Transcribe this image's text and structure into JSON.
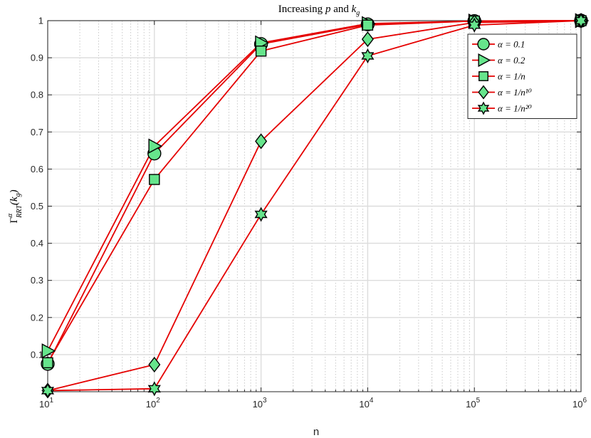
{
  "chart_data": {
    "type": "line",
    "title_prefix": "Increasing ",
    "title_var1": "p",
    "title_mid": " and ",
    "title_var2": "k",
    "title_var2_sub": "g",
    "xlabel": "n",
    "ylabel_main": "Γ",
    "ylabel_sup": "α",
    "ylabel_sub": "RRT",
    "ylabel_arg": "(k",
    "ylabel_arg_sub": "g",
    "ylabel_close": ")",
    "x_scale": "log",
    "xlim": [
      10,
      1000000
    ],
    "ylim": [
      0,
      1
    ],
    "x_tick_base": "10",
    "x_tick_exponents": [
      "1",
      "2",
      "3",
      "4",
      "5",
      "6"
    ],
    "y_ticks": [
      "0.1",
      "0.2",
      "0.3",
      "0.4",
      "0.5",
      "0.6",
      "0.7",
      "0.8",
      "0.9",
      "1"
    ],
    "y_tick_values": [
      0.1,
      0.2,
      0.3,
      0.4,
      0.5,
      0.6,
      0.7,
      0.8,
      0.9,
      1.0
    ],
    "grid": true,
    "legend_position": "top-right",
    "line_color": "#e50000",
    "marker_fill": "#66e58c",
    "marker_stroke": "#000000",
    "x": [
      10,
      100,
      1000,
      10000,
      100000,
      1000000
    ],
    "series": [
      {
        "name": "α = 0.1",
        "marker": "circle",
        "values": [
          0.075,
          0.642,
          0.937,
          0.99,
          0.999,
          1.0
        ]
      },
      {
        "name": "α = 0.2",
        "marker": "triangle-right",
        "values": [
          0.11,
          0.662,
          0.94,
          0.992,
          0.999,
          1.0
        ]
      },
      {
        "name": "α = 1/n",
        "marker": "square",
        "values": [
          0.078,
          0.572,
          0.918,
          0.988,
          0.999,
          1.0
        ]
      },
      {
        "name": "α = 1/n¹⁰",
        "marker": "diamond",
        "values": [
          0.003,
          0.073,
          0.675,
          0.95,
          0.995,
          1.0
        ]
      },
      {
        "name": "α = 1/n²⁰",
        "marker": "hexagram",
        "values": [
          0.003,
          0.008,
          0.478,
          0.905,
          0.988,
          1.0
        ]
      }
    ]
  }
}
